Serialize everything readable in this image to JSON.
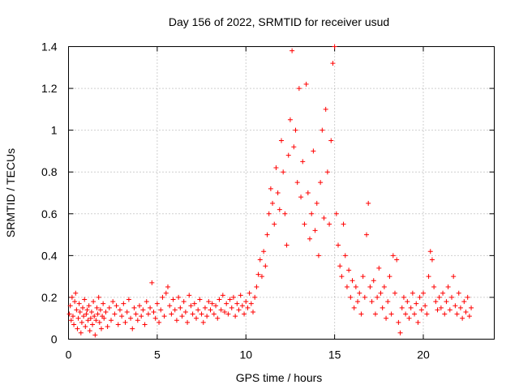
{
  "chart_data": {
    "type": "scatter",
    "title": "Day 156 of 2022, SRMTID for receiver usud",
    "xlabel": "GPS time / hours",
    "ylabel": "SRMTID / TECUs",
    "xlim": [
      0,
      24
    ],
    "ylim": [
      0,
      1.4
    ],
    "xticks": [
      0,
      5,
      10,
      15,
      20
    ],
    "xtick_labels": [
      "0",
      "5",
      "10",
      "15",
      "20"
    ],
    "yticks": [
      0,
      0.2,
      0.4,
      0.6,
      0.8,
      1.0,
      1.2,
      1.4
    ],
    "ytick_labels": [
      "0",
      "0.2",
      "0.4",
      "0.6",
      "0.8",
      "1",
      "1.2",
      "1.4"
    ],
    "grid": true,
    "marker": "+",
    "series": [
      {
        "name": "SRMTID",
        "color": "#ff0000",
        "points": [
          [
            0.05,
            0.12
          ],
          [
            0.1,
            0.16
          ],
          [
            0.15,
            0.09
          ],
          [
            0.2,
            0.2
          ],
          [
            0.25,
            0.11
          ],
          [
            0.3,
            0.07
          ],
          [
            0.35,
            0.18
          ],
          [
            0.4,
            0.22
          ],
          [
            0.45,
            0.14
          ],
          [
            0.5,
            0.05
          ],
          [
            0.55,
            0.1
          ],
          [
            0.6,
            0.17
          ],
          [
            0.65,
            0.13
          ],
          [
            0.7,
            0.03
          ],
          [
            0.75,
            0.08
          ],
          [
            0.8,
            0.15
          ],
          [
            0.85,
            0.11
          ],
          [
            0.9,
            0.19
          ],
          [
            0.95,
            0.06
          ],
          [
            1.0,
            0.12
          ],
          [
            1.05,
            0.14
          ],
          [
            1.1,
            0.09
          ],
          [
            1.15,
            0.16
          ],
          [
            1.2,
            0.04
          ],
          [
            1.25,
            0.1
          ],
          [
            1.3,
            0.13
          ],
          [
            1.35,
            0.07
          ],
          [
            1.4,
            0.18
          ],
          [
            1.45,
            0.11
          ],
          [
            1.5,
            0.02
          ],
          [
            1.55,
            0.09
          ],
          [
            1.6,
            0.15
          ],
          [
            1.65,
            0.12
          ],
          [
            1.7,
            0.2
          ],
          [
            1.75,
            0.08
          ],
          [
            1.8,
            0.14
          ],
          [
            1.85,
            0.05
          ],
          [
            1.9,
            0.11
          ],
          [
            1.95,
            0.17
          ],
          [
            2.0,
            0.1
          ],
          [
            2.1,
            0.13
          ],
          [
            2.2,
            0.06
          ],
          [
            2.3,
            0.15
          ],
          [
            2.4,
            0.09
          ],
          [
            2.5,
            0.18
          ],
          [
            2.6,
            0.12
          ],
          [
            2.7,
            0.16
          ],
          [
            2.8,
            0.07
          ],
          [
            2.9,
            0.14
          ],
          [
            3.0,
            0.11
          ],
          [
            3.1,
            0.17
          ],
          [
            3.2,
            0.08
          ],
          [
            3.3,
            0.13
          ],
          [
            3.4,
            0.19
          ],
          [
            3.5,
            0.1
          ],
          [
            3.6,
            0.05
          ],
          [
            3.7,
            0.15
          ],
          [
            3.8,
            0.12
          ],
          [
            3.9,
            0.09
          ],
          [
            4.0,
            0.16
          ],
          [
            4.1,
            0.11
          ],
          [
            4.2,
            0.14
          ],
          [
            4.3,
            0.07
          ],
          [
            4.4,
            0.18
          ],
          [
            4.5,
            0.12
          ],
          [
            4.6,
            0.15
          ],
          [
            4.7,
            0.27
          ],
          [
            4.8,
            0.13
          ],
          [
            4.9,
            0.1
          ],
          [
            5.0,
            0.17
          ],
          [
            5.1,
            0.08
          ],
          [
            5.2,
            0.14
          ],
          [
            5.3,
            0.2
          ],
          [
            5.4,
            0.11
          ],
          [
            5.5,
            0.22
          ],
          [
            5.6,
            0.25
          ],
          [
            5.7,
            0.16
          ],
          [
            5.8,
            0.12
          ],
          [
            5.9,
            0.19
          ],
          [
            6.0,
            0.14
          ],
          [
            6.1,
            0.09
          ],
          [
            6.2,
            0.2
          ],
          [
            6.3,
            0.15
          ],
          [
            6.4,
            0.11
          ],
          [
            6.5,
            0.18
          ],
          [
            6.6,
            0.13
          ],
          [
            6.7,
            0.08
          ],
          [
            6.8,
            0.21
          ],
          [
            6.9,
            0.16
          ],
          [
            7.0,
            0.12
          ],
          [
            7.1,
            0.17
          ],
          [
            7.2,
            0.1
          ],
          [
            7.3,
            0.14
          ],
          [
            7.4,
            0.19
          ],
          [
            7.5,
            0.12
          ],
          [
            7.6,
            0.08
          ],
          [
            7.7,
            0.15
          ],
          [
            7.8,
            0.11
          ],
          [
            7.9,
            0.18
          ],
          [
            8.0,
            0.14
          ],
          [
            8.1,
            0.17
          ],
          [
            8.2,
            0.12
          ],
          [
            8.3,
            0.16
          ],
          [
            8.4,
            0.1
          ],
          [
            8.5,
            0.19
          ],
          [
            8.6,
            0.14
          ],
          [
            8.7,
            0.21
          ],
          [
            8.8,
            0.13
          ],
          [
            8.9,
            0.17
          ],
          [
            9.0,
            0.12
          ],
          [
            9.1,
            0.19
          ],
          [
            9.2,
            0.15
          ],
          [
            9.3,
            0.2
          ],
          [
            9.4,
            0.11
          ],
          [
            9.5,
            0.17
          ],
          [
            9.6,
            0.14
          ],
          [
            9.7,
            0.21
          ],
          [
            9.8,
            0.16
          ],
          [
            9.9,
            0.12
          ],
          [
            10.0,
            0.18
          ],
          [
            10.1,
            0.15
          ],
          [
            10.2,
            0.22
          ],
          [
            10.3,
            0.17
          ],
          [
            10.4,
            0.13
          ],
          [
            10.5,
            0.2
          ],
          [
            10.6,
            0.25
          ],
          [
            10.7,
            0.31
          ],
          [
            10.8,
            0.38
          ],
          [
            10.9,
            0.3
          ],
          [
            11.0,
            0.42
          ],
          [
            11.1,
            0.35
          ],
          [
            11.2,
            0.5
          ],
          [
            11.3,
            0.6
          ],
          [
            11.4,
            0.72
          ],
          [
            11.5,
            0.65
          ],
          [
            11.6,
            0.55
          ],
          [
            11.7,
            0.82
          ],
          [
            11.8,
            0.7
          ],
          [
            11.9,
            0.62
          ],
          [
            12.0,
            0.95
          ],
          [
            12.1,
            0.8
          ],
          [
            12.2,
            0.6
          ],
          [
            12.3,
            0.45
          ],
          [
            12.4,
            0.88
          ],
          [
            12.5,
            1.05
          ],
          [
            12.6,
            1.38
          ],
          [
            12.7,
            0.92
          ],
          [
            12.8,
            1.0
          ],
          [
            12.9,
            0.75
          ],
          [
            13.0,
            1.2
          ],
          [
            13.1,
            0.68
          ],
          [
            13.2,
            0.85
          ],
          [
            13.3,
            0.55
          ],
          [
            13.4,
            1.22
          ],
          [
            13.5,
            0.7
          ],
          [
            13.6,
            0.48
          ],
          [
            13.7,
            0.6
          ],
          [
            13.8,
            0.9
          ],
          [
            13.9,
            0.52
          ],
          [
            14.0,
            0.65
          ],
          [
            14.1,
            0.4
          ],
          [
            14.2,
            0.75
          ],
          [
            14.3,
            1.0
          ],
          [
            14.4,
            0.58
          ],
          [
            14.5,
            1.1
          ],
          [
            14.6,
            0.8
          ],
          [
            14.7,
            0.55
          ],
          [
            14.8,
            0.95
          ],
          [
            14.9,
            1.32
          ],
          [
            15.0,
            1.4
          ],
          [
            15.1,
            0.6
          ],
          [
            15.2,
            0.45
          ],
          [
            15.3,
            0.35
          ],
          [
            15.4,
            0.3
          ],
          [
            15.5,
            0.55
          ],
          [
            15.6,
            0.4
          ],
          [
            15.7,
            0.25
          ],
          [
            15.8,
            0.33
          ],
          [
            15.9,
            0.2
          ],
          [
            16.0,
            0.28
          ],
          [
            16.1,
            0.15
          ],
          [
            16.2,
            0.25
          ],
          [
            16.3,
            0.18
          ],
          [
            16.4,
            0.22
          ],
          [
            16.5,
            0.12
          ],
          [
            16.6,
            0.3
          ],
          [
            16.7,
            0.2
          ],
          [
            16.8,
            0.5
          ],
          [
            16.9,
            0.65
          ],
          [
            17.0,
            0.25
          ],
          [
            17.1,
            0.18
          ],
          [
            17.2,
            0.28
          ],
          [
            17.3,
            0.12
          ],
          [
            17.4,
            0.2
          ],
          [
            17.5,
            0.34
          ],
          [
            17.6,
            0.22
          ],
          [
            17.7,
            0.15
          ],
          [
            17.8,
            0.25
          ],
          [
            17.9,
            0.1
          ],
          [
            18.0,
            0.18
          ],
          [
            18.1,
            0.3
          ],
          [
            18.2,
            0.12
          ],
          [
            18.3,
            0.4
          ],
          [
            18.4,
            0.22
          ],
          [
            18.5,
            0.38
          ],
          [
            18.6,
            0.08
          ],
          [
            18.7,
            0.03
          ],
          [
            18.8,
            0.15
          ],
          [
            18.9,
            0.2
          ],
          [
            19.0,
            0.12
          ],
          [
            19.1,
            0.18
          ],
          [
            19.2,
            0.1
          ],
          [
            19.3,
            0.15
          ],
          [
            19.4,
            0.22
          ],
          [
            19.5,
            0.12
          ],
          [
            19.6,
            0.17
          ],
          [
            19.7,
            0.08
          ],
          [
            19.8,
            0.2
          ],
          [
            19.9,
            0.14
          ],
          [
            20.0,
            0.22
          ],
          [
            20.1,
            0.16
          ],
          [
            20.2,
            0.12
          ],
          [
            20.3,
            0.3
          ],
          [
            20.4,
            0.42
          ],
          [
            20.5,
            0.38
          ],
          [
            20.6,
            0.25
          ],
          [
            20.7,
            0.18
          ],
          [
            20.8,
            0.14
          ],
          [
            20.9,
            0.2
          ],
          [
            21.0,
            0.15
          ],
          [
            21.1,
            0.22
          ],
          [
            21.2,
            0.12
          ],
          [
            21.3,
            0.18
          ],
          [
            21.4,
            0.25
          ],
          [
            21.5,
            0.14
          ],
          [
            21.6,
            0.2
          ],
          [
            21.7,
            0.3
          ],
          [
            21.8,
            0.16
          ],
          [
            21.9,
            0.12
          ],
          [
            22.0,
            0.22
          ],
          [
            22.1,
            0.15
          ],
          [
            22.2,
            0.1
          ],
          [
            22.3,
            0.18
          ],
          [
            22.4,
            0.13
          ],
          [
            22.5,
            0.2
          ],
          [
            22.6,
            0.11
          ],
          [
            22.7,
            0.15
          ]
        ]
      }
    ]
  }
}
